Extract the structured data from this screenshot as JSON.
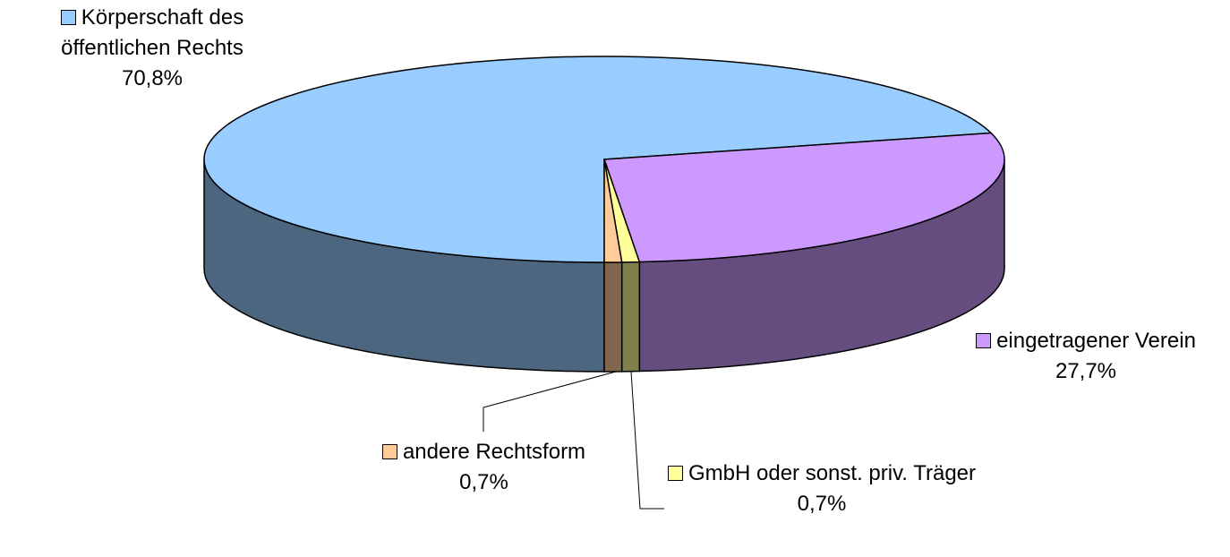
{
  "chart_data": {
    "type": "pie3d",
    "categories": [
      "Körperschaft des öffentlichen Rechts",
      "eingetragener Verein",
      "GmbH oder sonst. priv. Träger",
      "andere Rechtsform"
    ],
    "values": [
      70.8,
      27.7,
      0.7,
      0.7
    ],
    "value_labels": [
      "70,8%",
      "27,7%",
      "0,7%",
      "0,7%"
    ],
    "colors": [
      "#99ccff",
      "#cc99ff",
      "#ffff99",
      "#ffcc99"
    ]
  }
}
